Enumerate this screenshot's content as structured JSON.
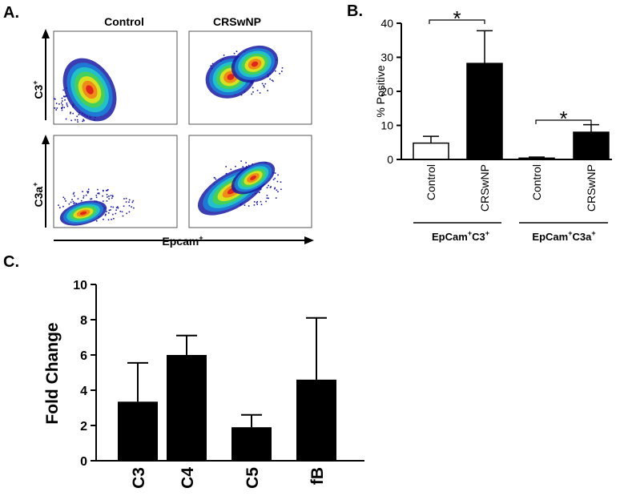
{
  "panels": {
    "a_label": "A.",
    "b_label": "B.",
    "c_label": "C."
  },
  "flow": {
    "col_labels": [
      "Control",
      "CRSwNP"
    ],
    "row_labels": [
      {
        "base": "C3",
        "sup": "+"
      },
      {
        "base": "C3a",
        "sup": "+"
      }
    ],
    "x_axis": {
      "base": "Epcam",
      "sup": "+"
    },
    "density_colors": [
      "#1a1aa6",
      "#1f78d4",
      "#22c0c8",
      "#44d05a",
      "#d8e020",
      "#f08a18",
      "#e0261a"
    ]
  },
  "chart_data": [
    {
      "id": "B",
      "type": "bar",
      "ylabel": "% Positive",
      "ylim": [
        0,
        40
      ],
      "yticks": [
        0,
        10,
        20,
        30,
        40
      ],
      "categories": [
        "Control",
        "CRSwNP",
        "Control",
        "CRSwNP"
      ],
      "values": [
        4.8,
        28.2,
        0.4,
        8.0
      ],
      "errors": [
        2.0,
        9.6,
        0.3,
        2.2
      ],
      "bar_fills": [
        "#ffffff",
        "#000000",
        "#ffffff",
        "#000000"
      ],
      "groups": [
        {
          "base": "EpCam",
          "parts": [
            {
              "sup": "+",
              "base": "C3"
            }
          ],
          "tail_sup": "+"
        },
        {
          "base": "EpCam",
          "parts": [
            {
              "sup": "+",
              "base": "C3a"
            }
          ],
          "tail_sup": "+"
        }
      ],
      "annotations": [
        {
          "text": "*",
          "between": [
            0,
            1
          ]
        },
        {
          "text": "*",
          "between": [
            2,
            3
          ]
        }
      ]
    },
    {
      "id": "C",
      "type": "bar",
      "ylabel": "Fold Change",
      "ylim": [
        0,
        10
      ],
      "yticks": [
        0,
        2,
        4,
        6,
        8,
        10
      ],
      "categories": [
        "C3",
        "C4",
        "C5",
        "fB"
      ],
      "values": [
        3.35,
        6.0,
        1.9,
        4.6
      ],
      "errors": [
        2.2,
        1.1,
        0.7,
        3.5
      ]
    }
  ]
}
